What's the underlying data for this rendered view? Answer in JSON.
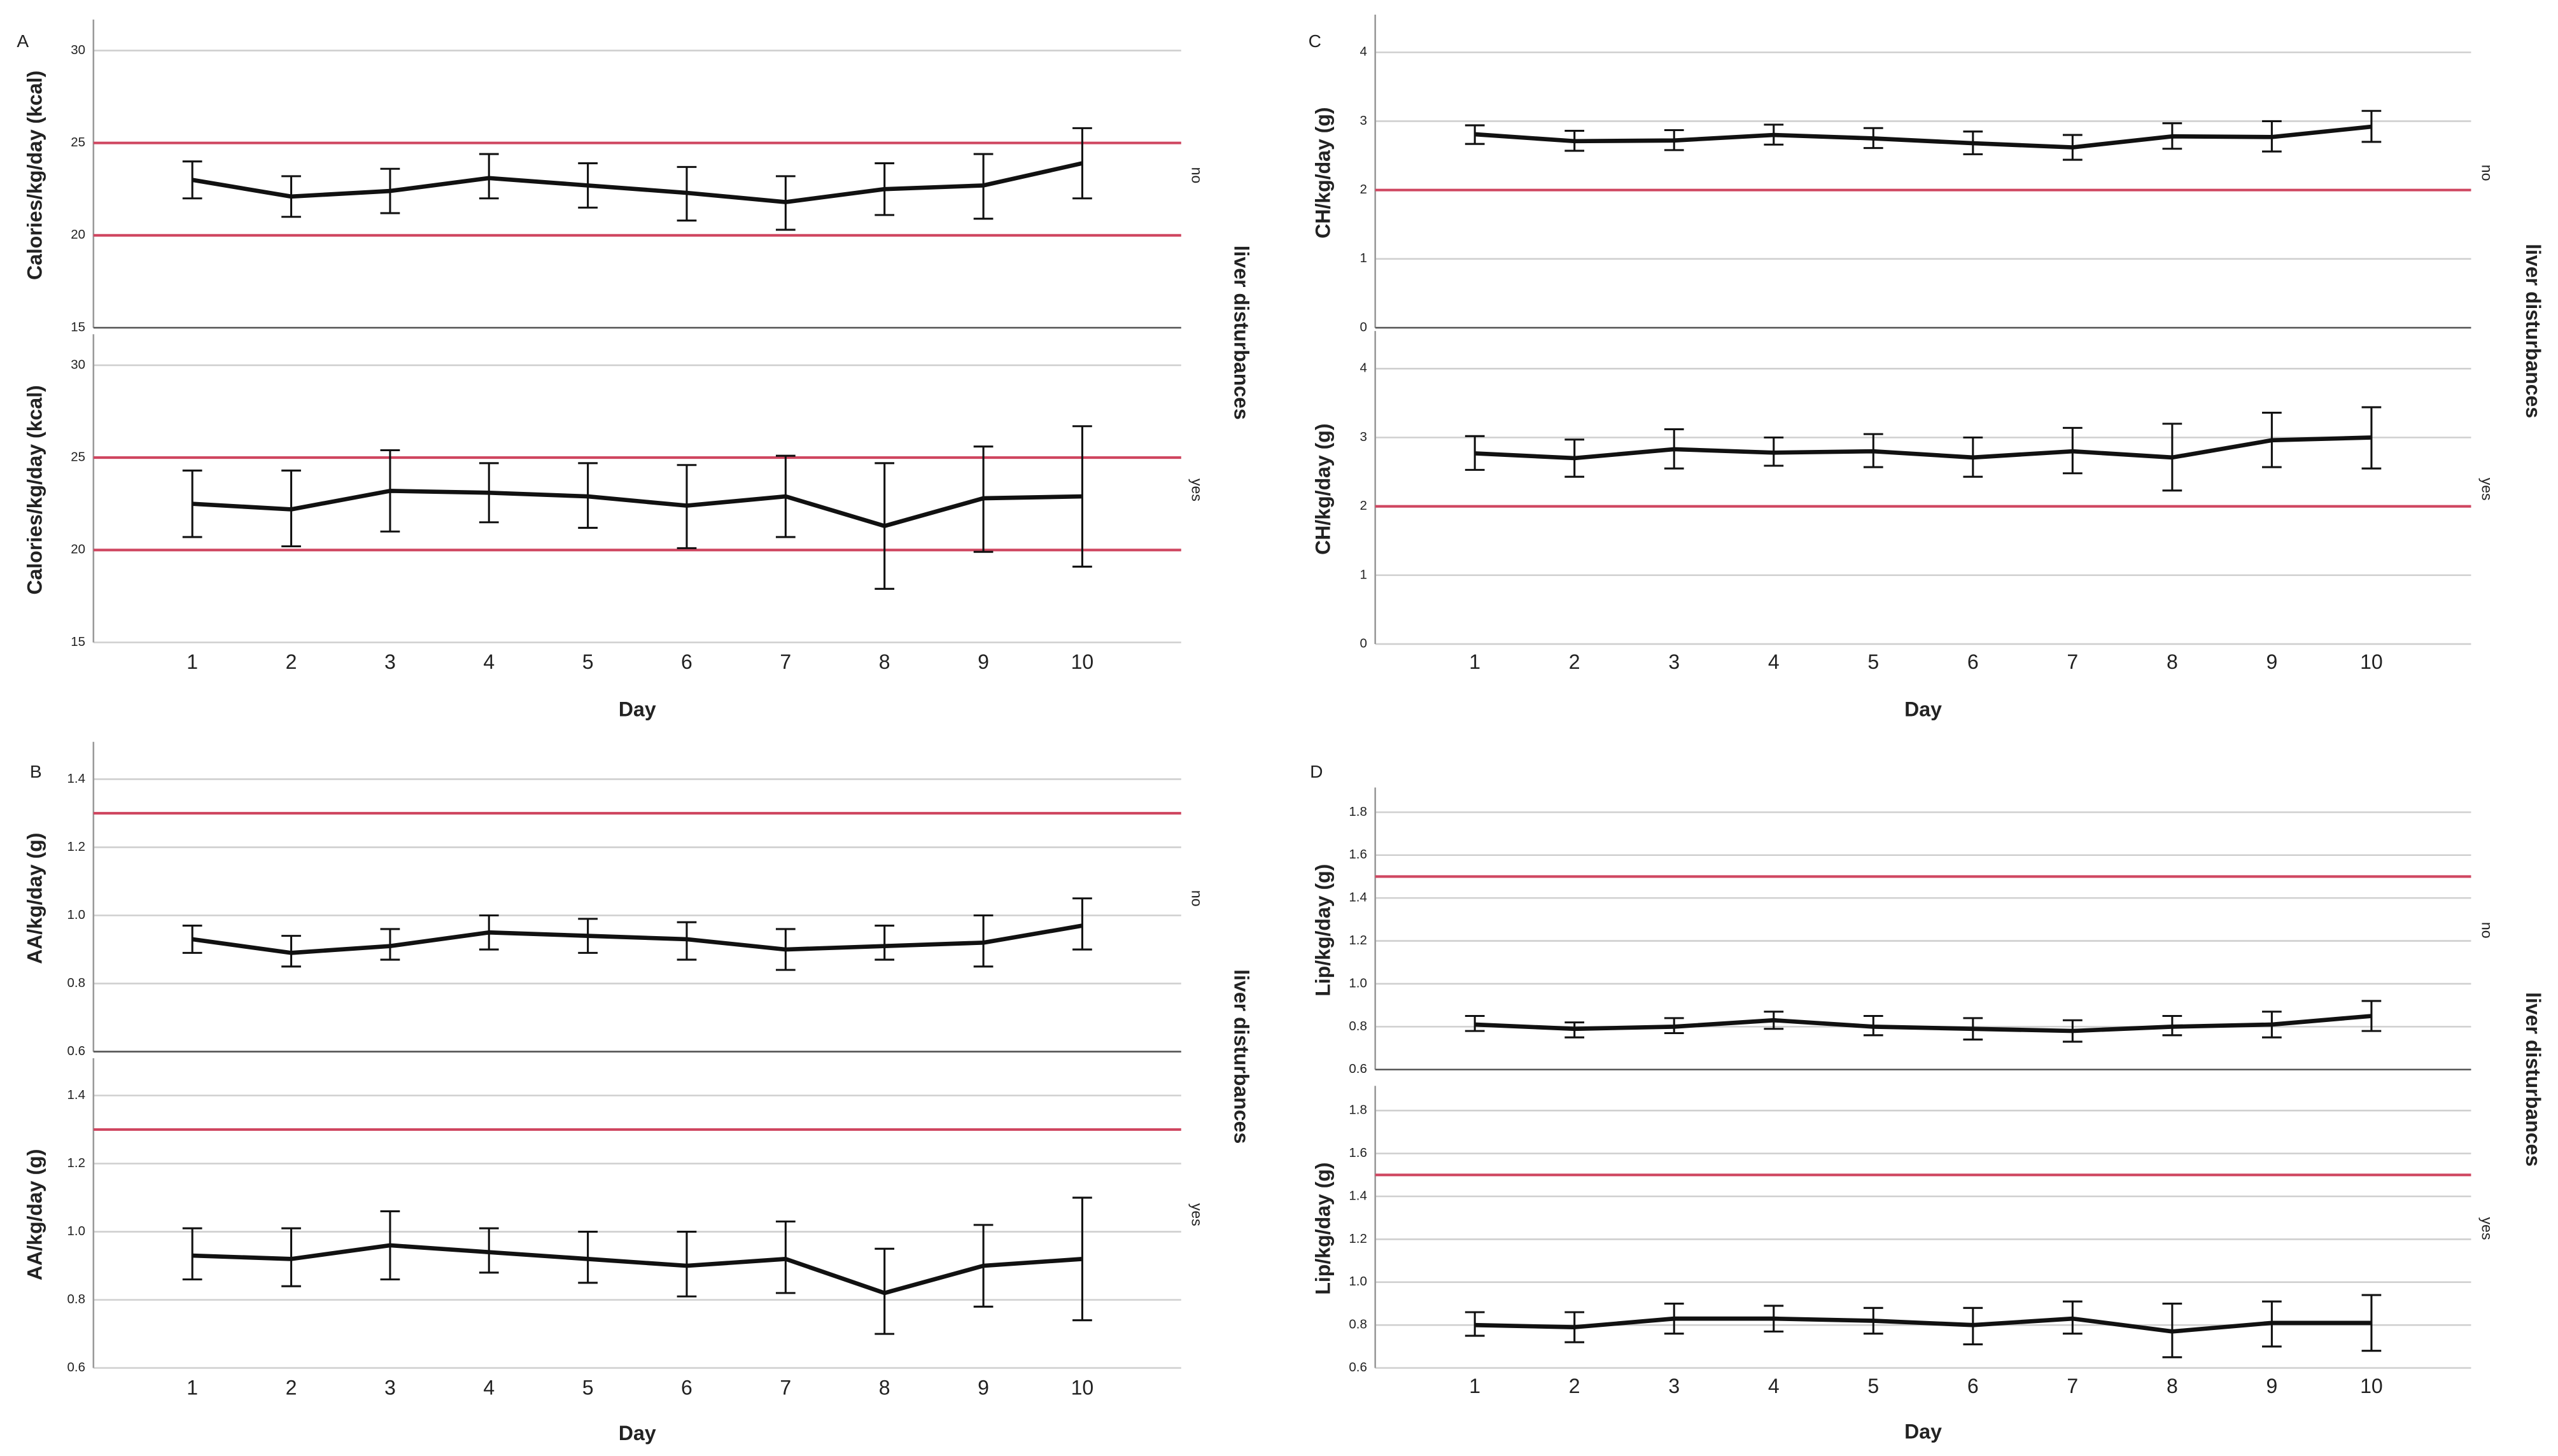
{
  "chart_data": [
    {
      "type": "line",
      "panel": "A",
      "ylabel": "Calories/kg/day (kcal)",
      "xlabel": "Day",
      "facet_label": "liver disturbances",
      "categories": [
        "1",
        "2",
        "3",
        "4",
        "5",
        "6",
        "7",
        "8",
        "9",
        "10"
      ],
      "ylim": [
        15,
        31.5
      ],
      "yticks": [
        15,
        20,
        25,
        30
      ],
      "grid": true,
      "reference_lines": [
        20,
        25
      ],
      "reference_color": "#cf4660",
      "line_color": "#111111",
      "facets": [
        {
          "name": "no",
          "values": [
            23.0,
            22.1,
            22.4,
            23.1,
            22.7,
            22.3,
            21.8,
            22.5,
            22.7,
            23.9
          ],
          "ci_low": [
            22.0,
            21.0,
            21.2,
            22.0,
            21.5,
            20.8,
            20.3,
            21.1,
            20.9,
            22.0
          ],
          "ci_high": [
            24.0,
            23.2,
            23.6,
            24.4,
            23.9,
            23.7,
            23.2,
            23.9,
            24.4,
            25.8
          ]
        },
        {
          "name": "yes",
          "values": [
            22.5,
            22.2,
            23.2,
            23.1,
            22.9,
            22.4,
            22.9,
            21.3,
            22.8,
            22.9
          ],
          "ci_low": [
            20.7,
            20.2,
            21.0,
            21.5,
            21.2,
            20.1,
            20.7,
            17.9,
            19.9,
            19.1
          ],
          "ci_high": [
            24.3,
            24.3,
            25.4,
            24.7,
            24.7,
            24.6,
            25.1,
            24.7,
            25.6,
            26.7
          ]
        }
      ]
    },
    {
      "type": "line",
      "panel": "B",
      "ylabel": "AA/kg/day (g)",
      "xlabel": "Day",
      "facet_label": "liver disturbances",
      "categories": [
        "1",
        "2",
        "3",
        "4",
        "5",
        "6",
        "7",
        "8",
        "9",
        "10"
      ],
      "ylim": [
        0.6,
        1.5
      ],
      "yticks": [
        0.6,
        0.8,
        {
          "value": 1,
          "label": "1.0"
        },
        1.2,
        1.4
      ],
      "grid": true,
      "reference_lines": [
        1.3
      ],
      "reference_color": "#cf4660",
      "line_color": "#111111",
      "facets": [
        {
          "name": "no",
          "values": [
            0.93,
            0.89,
            0.91,
            0.95,
            0.94,
            0.93,
            0.9,
            0.91,
            0.92,
            0.97
          ],
          "ci_low": [
            0.89,
            0.85,
            0.87,
            0.9,
            0.89,
            0.87,
            0.84,
            0.87,
            0.85,
            0.9
          ],
          "ci_high": [
            0.97,
            0.94,
            0.96,
            1.0,
            0.99,
            0.98,
            0.96,
            0.97,
            1.0,
            1.05
          ]
        },
        {
          "name": "yes",
          "values": [
            0.93,
            0.92,
            0.96,
            0.94,
            0.92,
            0.9,
            0.92,
            0.82,
            0.9,
            0.92
          ],
          "ci_low": [
            0.86,
            0.84,
            0.86,
            0.88,
            0.85,
            0.81,
            0.82,
            0.7,
            0.78,
            0.74
          ],
          "ci_high": [
            1.01,
            1.01,
            1.06,
            1.01,
            1.0,
            1.0,
            1.03,
            0.95,
            1.02,
            1.1
          ]
        }
      ]
    },
    {
      "type": "line",
      "panel": "C",
      "ylabel": "CH/kg/day (g)",
      "xlabel": "Day",
      "facet_label": "liver disturbances",
      "categories": [
        "1",
        "2",
        "3",
        "4",
        "5",
        "6",
        "7",
        "8",
        "9",
        "10"
      ],
      "ylim": [
        0,
        4.5
      ],
      "yticks": [
        0,
        1,
        2,
        3,
        4
      ],
      "grid": true,
      "reference_lines": [
        2
      ],
      "reference_color": "#cf4660",
      "line_color": "#111111",
      "facets": [
        {
          "name": "no",
          "values": [
            2.81,
            2.71,
            2.72,
            2.8,
            2.75,
            2.68,
            2.62,
            2.78,
            2.77,
            2.92
          ],
          "ci_low": [
            2.67,
            2.57,
            2.58,
            2.66,
            2.61,
            2.52,
            2.44,
            2.6,
            2.56,
            2.7
          ],
          "ci_high": [
            2.94,
            2.86,
            2.87,
            2.95,
            2.9,
            2.85,
            2.8,
            2.97,
            3.0,
            3.15
          ]
        },
        {
          "name": "yes",
          "values": [
            2.77,
            2.7,
            2.83,
            2.78,
            2.8,
            2.71,
            2.8,
            2.71,
            2.96,
            3.0
          ],
          "ci_low": [
            2.53,
            2.43,
            2.55,
            2.59,
            2.57,
            2.43,
            2.48,
            2.23,
            2.57,
            2.55
          ],
          "ci_high": [
            3.02,
            2.97,
            3.12,
            3.0,
            3.05,
            3.0,
            3.14,
            3.2,
            3.36,
            3.44
          ]
        }
      ]
    },
    {
      "type": "line",
      "panel": "D",
      "ylabel": "Lip/kg/day (g)",
      "xlabel": "Day",
      "facet_label": "liver disturbances",
      "categories": [
        "1",
        "2",
        "3",
        "4",
        "5",
        "6",
        "7",
        "8",
        "9",
        "10"
      ],
      "ylim": [
        0.6,
        1.9
      ],
      "yticks": [
        0.6,
        0.8,
        {
          "value": 1,
          "label": "1.0"
        },
        1.2,
        1.4,
        1.6,
        1.8
      ],
      "grid": true,
      "reference_lines": [
        1.5
      ],
      "reference_color": "#cf4660",
      "line_color": "#111111",
      "facets": [
        {
          "name": "no",
          "values": [
            0.81,
            0.79,
            0.8,
            0.83,
            0.8,
            0.79,
            0.78,
            0.8,
            0.81,
            0.85
          ],
          "ci_low": [
            0.78,
            0.75,
            0.77,
            0.79,
            0.76,
            0.74,
            0.73,
            0.76,
            0.75,
            0.78
          ],
          "ci_high": [
            0.85,
            0.82,
            0.84,
            0.87,
            0.85,
            0.84,
            0.83,
            0.85,
            0.87,
            0.92
          ]
        },
        {
          "name": "yes",
          "values": [
            0.8,
            0.79,
            0.83,
            0.83,
            0.82,
            0.8,
            0.83,
            0.77,
            0.81,
            0.81
          ],
          "ci_low": [
            0.75,
            0.72,
            0.76,
            0.77,
            0.76,
            0.71,
            0.76,
            0.65,
            0.7,
            0.68
          ],
          "ci_high": [
            0.86,
            0.86,
            0.9,
            0.89,
            0.88,
            0.88,
            0.91,
            0.9,
            0.91,
            0.94
          ]
        }
      ]
    }
  ]
}
